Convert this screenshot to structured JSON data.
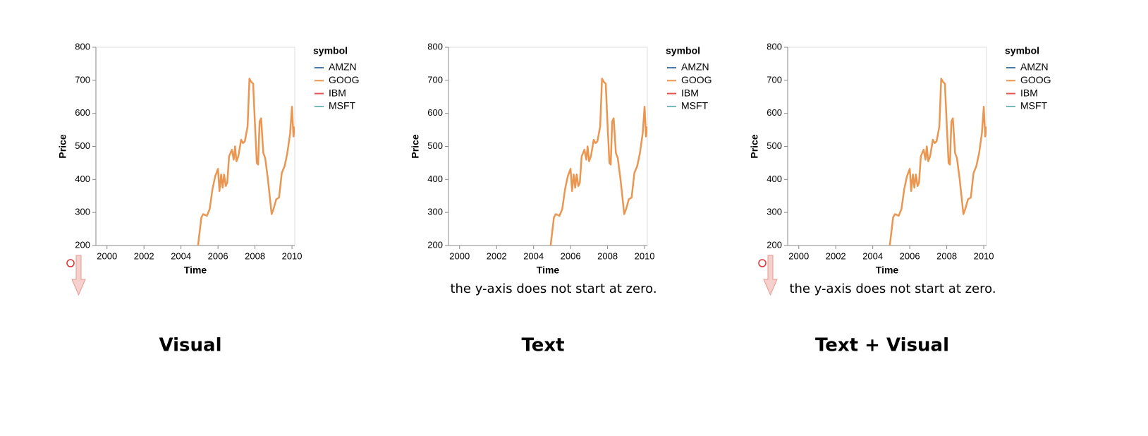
{
  "chart_data": [
    {
      "type": "line",
      "x_label": "Time",
      "y_label": "Price",
      "legend_title": "symbol",
      "caption": "Visual",
      "visual_cue": true,
      "xlim": [
        1999.4,
        2010.15
      ],
      "xticks": [
        2000,
        2002,
        2004,
        2006,
        2008,
        2010
      ],
      "ylim": [
        200,
        800
      ],
      "yticks": [
        200,
        300,
        400,
        500,
        600,
        700,
        800
      ],
      "x": [
        2004.6,
        2004.9,
        2005.1,
        2005.2,
        2005.4,
        2005.55,
        2005.7,
        2005.85,
        2006.0,
        2006.08,
        2006.17,
        2006.25,
        2006.33,
        2006.42,
        2006.5,
        2006.6,
        2006.75,
        2006.85,
        2006.92,
        2007.0,
        2007.1,
        2007.25,
        2007.35,
        2007.45,
        2007.6,
        2007.7,
        2007.8,
        2007.9,
        2008.0,
        2008.1,
        2008.17,
        2008.25,
        2008.33,
        2008.45,
        2008.55,
        2008.7,
        2008.9,
        2009.0,
        2009.15,
        2009.3,
        2009.45,
        2009.6,
        2009.75,
        2009.9,
        2010.0,
        2010.08,
        2010.15
      ],
      "series": [
        {
          "name": "AMZN",
          "color": "#4c78a8",
          "values": [
            null,
            null,
            null,
            null,
            null,
            null,
            null,
            null,
            null,
            null,
            null,
            null,
            null,
            null,
            null,
            null,
            null,
            null,
            null,
            null,
            null,
            null,
            null,
            null,
            null,
            null,
            null,
            null,
            null,
            null,
            null,
            null,
            null,
            null,
            null,
            null,
            null,
            null,
            null,
            null,
            null,
            null,
            null,
            null,
            null,
            null,
            null
          ]
        },
        {
          "name": "GOOG",
          "color": "#eb9650",
          "values": [
            102,
            190,
            285,
            295,
            290,
            310,
            370,
            410,
            432,
            365,
            415,
            375,
            415,
            380,
            390,
            470,
            490,
            460,
            500,
            455,
            470,
            520,
            510,
            515,
            560,
            705,
            695,
            690,
            565,
            450,
            445,
            575,
            585,
            480,
            465,
            400,
            295,
            310,
            340,
            345,
            420,
            440,
            480,
            540,
            620,
            530,
            560
          ]
        },
        {
          "name": "IBM",
          "color": "#e45756",
          "values": [
            null,
            null,
            null,
            null,
            null,
            null,
            null,
            null,
            null,
            null,
            null,
            null,
            null,
            null,
            null,
            null,
            null,
            null,
            null,
            null,
            null,
            null,
            null,
            null,
            null,
            null,
            null,
            null,
            null,
            null,
            null,
            null,
            null,
            null,
            null,
            null,
            null,
            null,
            null,
            null,
            null,
            null,
            null,
            null,
            null,
            null,
            null
          ]
        },
        {
          "name": "MSFT",
          "color": "#72b7b2",
          "values": [
            null,
            null,
            null,
            null,
            null,
            null,
            null,
            null,
            null,
            null,
            null,
            null,
            null,
            null,
            null,
            null,
            null,
            null,
            null,
            null,
            null,
            null,
            null,
            null,
            null,
            null,
            null,
            null,
            null,
            null,
            null,
            null,
            null,
            null,
            null,
            null,
            null,
            null,
            null,
            null,
            null,
            null,
            null,
            null,
            null,
            null,
            null
          ]
        }
      ]
    },
    {
      "type": "line",
      "x_label": "Time",
      "y_label": "Price",
      "legend_title": "symbol",
      "caption": "Text",
      "annotation": "the y-axis does not start at zero.",
      "xlim": [
        1999.4,
        2010.15
      ],
      "xticks": [
        2000,
        2002,
        2004,
        2006,
        2008,
        2010
      ],
      "ylim": [
        200,
        800
      ],
      "yticks": [
        200,
        300,
        400,
        500,
        600,
        700,
        800
      ],
      "x": [
        2004.6,
        2004.9,
        2005.1,
        2005.2,
        2005.4,
        2005.55,
        2005.7,
        2005.85,
        2006.0,
        2006.08,
        2006.17,
        2006.25,
        2006.33,
        2006.42,
        2006.5,
        2006.6,
        2006.75,
        2006.85,
        2006.92,
        2007.0,
        2007.1,
        2007.25,
        2007.35,
        2007.45,
        2007.6,
        2007.7,
        2007.8,
        2007.9,
        2008.0,
        2008.1,
        2008.17,
        2008.25,
        2008.33,
        2008.45,
        2008.55,
        2008.7,
        2008.9,
        2009.0,
        2009.15,
        2009.3,
        2009.45,
        2009.6,
        2009.75,
        2009.9,
        2010.0,
        2010.08,
        2010.15
      ],
      "series": [
        {
          "name": "AMZN",
          "color": "#4c78a8",
          "values": [
            null,
            null,
            null,
            null,
            null,
            null,
            null,
            null,
            null,
            null,
            null,
            null,
            null,
            null,
            null,
            null,
            null,
            null,
            null,
            null,
            null,
            null,
            null,
            null,
            null,
            null,
            null,
            null,
            null,
            null,
            null,
            null,
            null,
            null,
            null,
            null,
            null,
            null,
            null,
            null,
            null,
            null,
            null,
            null,
            null,
            null,
            null
          ]
        },
        {
          "name": "GOOG",
          "color": "#eb9650",
          "values": [
            102,
            190,
            285,
            295,
            290,
            310,
            370,
            410,
            432,
            365,
            415,
            375,
            415,
            380,
            390,
            470,
            490,
            460,
            500,
            455,
            470,
            520,
            510,
            515,
            560,
            705,
            695,
            690,
            565,
            450,
            445,
            575,
            585,
            480,
            465,
            400,
            295,
            310,
            340,
            345,
            420,
            440,
            480,
            540,
            620,
            530,
            560
          ]
        },
        {
          "name": "IBM",
          "color": "#e45756",
          "values": [
            null,
            null,
            null,
            null,
            null,
            null,
            null,
            null,
            null,
            null,
            null,
            null,
            null,
            null,
            null,
            null,
            null,
            null,
            null,
            null,
            null,
            null,
            null,
            null,
            null,
            null,
            null,
            null,
            null,
            null,
            null,
            null,
            null,
            null,
            null,
            null,
            null,
            null,
            null,
            null,
            null,
            null,
            null,
            null,
            null,
            null,
            null
          ]
        },
        {
          "name": "MSFT",
          "color": "#72b7b2",
          "values": [
            null,
            null,
            null,
            null,
            null,
            null,
            null,
            null,
            null,
            null,
            null,
            null,
            null,
            null,
            null,
            null,
            null,
            null,
            null,
            null,
            null,
            null,
            null,
            null,
            null,
            null,
            null,
            null,
            null,
            null,
            null,
            null,
            null,
            null,
            null,
            null,
            null,
            null,
            null,
            null,
            null,
            null,
            null,
            null,
            null,
            null,
            null
          ]
        }
      ]
    },
    {
      "type": "line",
      "x_label": "Time",
      "y_label": "Price",
      "legend_title": "symbol",
      "caption": "Text + Visual",
      "annotation": "the y-axis does not start at zero.",
      "visual_cue": true,
      "xlim": [
        1999.4,
        2010.15
      ],
      "xticks": [
        2000,
        2002,
        2004,
        2006,
        2008,
        2010
      ],
      "ylim": [
        200,
        800
      ],
      "yticks": [
        200,
        300,
        400,
        500,
        600,
        700,
        800
      ],
      "x": [
        2004.6,
        2004.9,
        2005.1,
        2005.2,
        2005.4,
        2005.55,
        2005.7,
        2005.85,
        2006.0,
        2006.08,
        2006.17,
        2006.25,
        2006.33,
        2006.42,
        2006.5,
        2006.6,
        2006.75,
        2006.85,
        2006.92,
        2007.0,
        2007.1,
        2007.25,
        2007.35,
        2007.45,
        2007.6,
        2007.7,
        2007.8,
        2007.9,
        2008.0,
        2008.1,
        2008.17,
        2008.25,
        2008.33,
        2008.45,
        2008.55,
        2008.7,
        2008.9,
        2009.0,
        2009.15,
        2009.3,
        2009.45,
        2009.6,
        2009.75,
        2009.9,
        2010.0,
        2010.08,
        2010.15
      ],
      "series": [
        {
          "name": "AMZN",
          "color": "#4c78a8",
          "values": [
            null,
            null,
            null,
            null,
            null,
            null,
            null,
            null,
            null,
            null,
            null,
            null,
            null,
            null,
            null,
            null,
            null,
            null,
            null,
            null,
            null,
            null,
            null,
            null,
            null,
            null,
            null,
            null,
            null,
            null,
            null,
            null,
            null,
            null,
            null,
            null,
            null,
            null,
            null,
            null,
            null,
            null,
            null,
            null,
            null,
            null,
            null
          ]
        },
        {
          "name": "GOOG",
          "color": "#eb9650",
          "values": [
            102,
            190,
            285,
            295,
            290,
            310,
            370,
            410,
            432,
            365,
            415,
            375,
            415,
            380,
            390,
            470,
            490,
            460,
            500,
            455,
            470,
            520,
            510,
            515,
            560,
            705,
            695,
            690,
            565,
            450,
            445,
            575,
            585,
            480,
            465,
            400,
            295,
            310,
            340,
            345,
            420,
            440,
            480,
            540,
            620,
            530,
            560
          ]
        },
        {
          "name": "IBM",
          "color": "#e45756",
          "values": [
            null,
            null,
            null,
            null,
            null,
            null,
            null,
            null,
            null,
            null,
            null,
            null,
            null,
            null,
            null,
            null,
            null,
            null,
            null,
            null,
            null,
            null,
            null,
            null,
            null,
            null,
            null,
            null,
            null,
            null,
            null,
            null,
            null,
            null,
            null,
            null,
            null,
            null,
            null,
            null,
            null,
            null,
            null,
            null,
            null,
            null,
            null
          ]
        },
        {
          "name": "MSFT",
          "color": "#72b7b2",
          "values": [
            null,
            null,
            null,
            null,
            null,
            null,
            null,
            null,
            null,
            null,
            null,
            null,
            null,
            null,
            null,
            null,
            null,
            null,
            null,
            null,
            null,
            null,
            null,
            null,
            null,
            null,
            null,
            null,
            null,
            null,
            null,
            null,
            null,
            null,
            null,
            null,
            null,
            null,
            null,
            null,
            null,
            null,
            null,
            null,
            null,
            null,
            null
          ]
        }
      ]
    }
  ]
}
